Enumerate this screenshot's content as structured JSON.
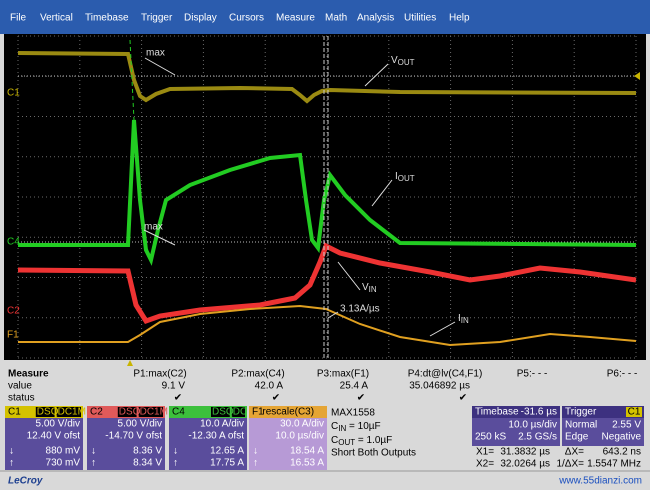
{
  "menu": [
    "File",
    "Vertical",
    "Timebase",
    "Trigger",
    "Display",
    "Cursors",
    "Measure",
    "Math",
    "Analysis",
    "Utilities",
    "Help"
  ],
  "screen": {
    "labels": {
      "max_vout": "max",
      "vout": {
        "main": "V",
        "sub": "OUT"
      },
      "iout": {
        "main": "I",
        "sub": "OUT"
      },
      "max_iout": "max",
      "vin": {
        "main": "V",
        "sub": "IN"
      },
      "slew": "3.13A/µs",
      "iin": {
        "main": "I",
        "sub": "IN"
      }
    },
    "markers": [
      "C1",
      "C4",
      "C2",
      "F1"
    ]
  },
  "measure": {
    "headers": [
      "Measure",
      "value",
      "status"
    ],
    "params": [
      {
        "name": "P1:max(C2)",
        "value": "9.1 V",
        "status": "✔"
      },
      {
        "name": "P2:max(C4)",
        "value": "42.0 A",
        "status": "✔"
      },
      {
        "name": "P3:max(F1)",
        "value": "25.4 A",
        "status": "✔"
      },
      {
        "name": "P4:dt@lv(C4,F1)",
        "value": "35.046892 µs",
        "status": "✔"
      },
      {
        "name": "P5:- - -"
      },
      {
        "name": "P6:- - -"
      }
    ]
  },
  "channels": [
    {
      "id": "C1",
      "tags": [
        "DSQ",
        "DC1M"
      ],
      "lines": [
        "5.00 V/div",
        "12.40 V ofst"
      ],
      "readouts": [
        [
          "↓",
          "880 mV"
        ],
        [
          "↑",
          "730 mV"
        ]
      ]
    },
    {
      "id": "C2",
      "tags": [
        "DSQ",
        "DC1M"
      ],
      "lines": [
        "5.00 V/div",
        "-14.70 V ofst"
      ],
      "readouts": [
        [
          "↓",
          "8.36 V"
        ],
        [
          "↑",
          "8.34 V"
        ]
      ]
    },
    {
      "id": "C4",
      "tags": [
        "DSQ",
        "DC"
      ],
      "lines": [
        "10.0 A/div",
        "-12.30 A ofst"
      ],
      "readouts": [
        [
          "↓",
          "12.65 A"
        ],
        [
          "↑",
          "17.75 A"
        ]
      ]
    },
    {
      "id": "F1",
      "tags": [
        "rescale(C3)"
      ],
      "lines": [
        "30.0 A/div",
        "10.0 µs/div"
      ],
      "readouts": [
        [
          "↓",
          "18.54 A"
        ],
        [
          "↑",
          "16.53 A"
        ]
      ]
    }
  ],
  "notes": {
    "title": "MAX1558",
    "cin": {
      "main": "C",
      "sub": "IN",
      "rest": " = 10µF"
    },
    "cout": {
      "main": "C",
      "sub": "OUT",
      "rest": " = 1.0µF"
    },
    "text": "Short Both Outputs"
  },
  "timebase": {
    "label": "Timebase",
    "offset": "-31.6 µs",
    "rows": [
      [
        "10.0 µs/div"
      ],
      [
        "250 kS",
        "2.5 GS/s"
      ]
    ]
  },
  "trigger": {
    "label": "Trigger",
    "channel": "C1",
    "rows": [
      [
        "Normal",
        "2.55 V"
      ],
      [
        "Edge",
        "Negative"
      ]
    ]
  },
  "cursors": [
    [
      "X1=",
      "31.3832 µs",
      "ΔX=",
      "643.2 ns"
    ],
    [
      "X2=",
      "32.0264 µs",
      "1/ΔX=",
      "1.5547 MHz"
    ]
  ],
  "logo": "LeCroy",
  "watermark": "www.55dianzi.com"
}
